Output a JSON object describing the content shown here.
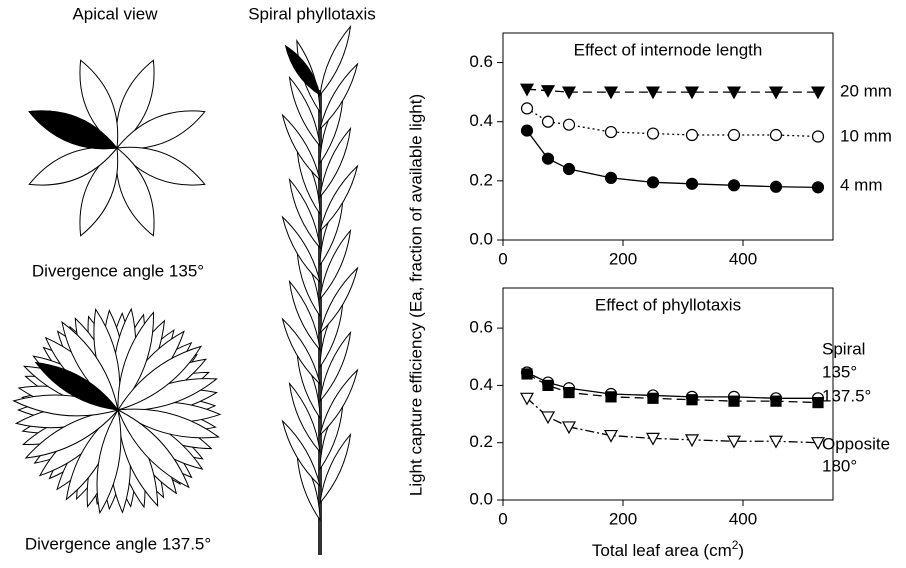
{
  "illustrations": {
    "apical_title": "Apical view",
    "spiral_title": "Spiral phyllotaxis",
    "caption_top": "Divergence angle 135°",
    "caption_bottom": "Divergence angle 137.5°"
  },
  "axis_labels": {
    "ylabel": "Light capture efficiency (Ea, fraction of available light)",
    "xlabel": [
      "Total leaf area (cm",
      "2",
      ")"
    ]
  },
  "chart_data": [
    {
      "type": "line",
      "title": "Effect of internode length",
      "x": [
        40,
        75,
        110,
        180,
        250,
        315,
        385,
        455,
        525
      ],
      "xlim": [
        0,
        550
      ],
      "xticks": [
        0,
        200,
        400
      ],
      "ylim": [
        0,
        0.7
      ],
      "yticks": [
        {
          "value": 0,
          "label": "0.0"
        },
        0.2,
        0.4,
        0.6
      ],
      "series": [
        {
          "name": "20 mm",
          "color": "#000000",
          "marker": "triangle-down-filled",
          "dash": "dashed",
          "values": [
            0.51,
            0.505,
            0.5,
            0.5,
            0.5,
            0.5,
            0.5,
            0.5,
            0.5
          ]
        },
        {
          "name": "10 mm",
          "color": "#000000",
          "marker": "circle-open",
          "dash": "dotted",
          "values": [
            0.445,
            0.4,
            0.39,
            0.365,
            0.36,
            0.355,
            0.355,
            0.355,
            0.35
          ]
        },
        {
          "name": "4 mm",
          "color": "#000000",
          "marker": "circle-filled",
          "dash": "solid",
          "values": [
            0.37,
            0.275,
            0.24,
            0.21,
            0.195,
            0.19,
            0.185,
            0.18,
            0.178
          ]
        }
      ]
    },
    {
      "type": "line",
      "title": "Effect of phyllotaxis",
      "x": [
        40,
        75,
        110,
        180,
        250,
        315,
        385,
        455,
        525
      ],
      "xlim": [
        0,
        550
      ],
      "xticks": [
        0,
        200,
        400
      ],
      "ylim": [
        0,
        0.74
      ],
      "yticks": [
        {
          "value": 0,
          "label": "0.0"
        },
        0.2,
        0.4,
        0.6
      ],
      "annotations": [
        "Spiral",
        "Opposite"
      ],
      "series": [
        {
          "name": "135°",
          "color": "#000000",
          "marker": "circle-open",
          "dash": "solid",
          "values": [
            0.445,
            0.41,
            0.39,
            0.37,
            0.365,
            0.36,
            0.36,
            0.355,
            0.355
          ]
        },
        {
          "name": "137.5°",
          "color": "#000000",
          "marker": "square-filled",
          "dash": "dashed",
          "values": [
            0.44,
            0.4,
            0.375,
            0.36,
            0.355,
            0.35,
            0.345,
            0.345,
            0.34
          ]
        },
        {
          "name": "180°",
          "color": "#000000",
          "marker": "triangle-down-open",
          "dash": "dashdot",
          "values": [
            0.355,
            0.29,
            0.255,
            0.225,
            0.215,
            0.21,
            0.205,
            0.205,
            0.2
          ]
        }
      ]
    }
  ]
}
